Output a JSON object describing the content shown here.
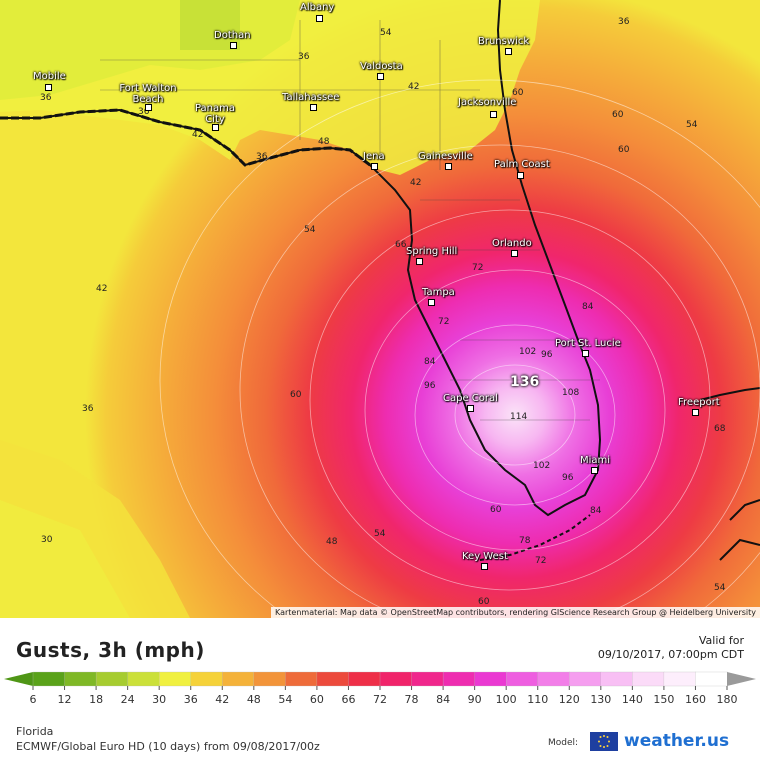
{
  "title": "Gusts, 3h (mph)",
  "valid": {
    "label": "Valid for",
    "datetime": "09/10/2017, 07:00pm CDT"
  },
  "region": "Florida",
  "model": "ECMWF/Global Euro HD (10 days) from 09/08/2017/00z",
  "attribution": "Kartenmaterial: Map data © OpenStreetMap contributors, rendering GIScience Research Group @ Heidelberg University",
  "brand": {
    "model_label": "Model:",
    "name": "weather.us",
    "flag_icon": "eu-flag-icon"
  },
  "max_value": "136",
  "scale": {
    "ticks": [
      "6",
      "12",
      "18",
      "24",
      "30",
      "36",
      "42",
      "48",
      "54",
      "60",
      "66",
      "72",
      "78",
      "84",
      "90",
      "100",
      "110",
      "120",
      "130",
      "140",
      "150",
      "160",
      "180"
    ],
    "colors": [
      "#5aa21a",
      "#7fb826",
      "#a6cc30",
      "#cbe03a",
      "#f0f040",
      "#f5d23a",
      "#f4b23a",
      "#f2943a",
      "#ee6b3a",
      "#ec4a3c",
      "#ee2f48",
      "#f0246a",
      "#f0278c",
      "#ee2db0",
      "#ea39d2",
      "#ee5ee0",
      "#f27ee8",
      "#f59eef",
      "#f8bff4",
      "#fbdbf8",
      "#fdeefc",
      "#ffffff"
    ]
  },
  "cities": [
    {
      "name": "Albany"
    },
    {
      "name": "Dothan"
    },
    {
      "name": "Brunswick"
    },
    {
      "name": "Mobile"
    },
    {
      "name": "Valdosta"
    },
    {
      "name": "Fort Walton Beach"
    },
    {
      "name": "Tallahassee"
    },
    {
      "name": "Jacksonville"
    },
    {
      "name": "Panama City"
    },
    {
      "name": "Jena"
    },
    {
      "name": "Gainesville"
    },
    {
      "name": "Palm Coast"
    },
    {
      "name": "Spring Hill"
    },
    {
      "name": "Orlando"
    },
    {
      "name": "Tampa"
    },
    {
      "name": "Port St. Lucie"
    },
    {
      "name": "Cape Coral"
    },
    {
      "name": "Freeport"
    },
    {
      "name": "Miami"
    },
    {
      "name": "Key West"
    }
  ],
  "contour_labels": [
    "36",
    "54",
    "36",
    "36",
    "60",
    "42",
    "54",
    "36",
    "42",
    "48",
    "36",
    "42",
    "60",
    "54",
    "60",
    "42",
    "66",
    "72",
    "84",
    "60",
    "36",
    "72",
    "84",
    "102",
    "96",
    "96",
    "108",
    "114",
    "102",
    "96",
    "84",
    "60",
    "68",
    "30",
    "48",
    "54",
    "78",
    "72",
    "54",
    "60"
  ]
}
